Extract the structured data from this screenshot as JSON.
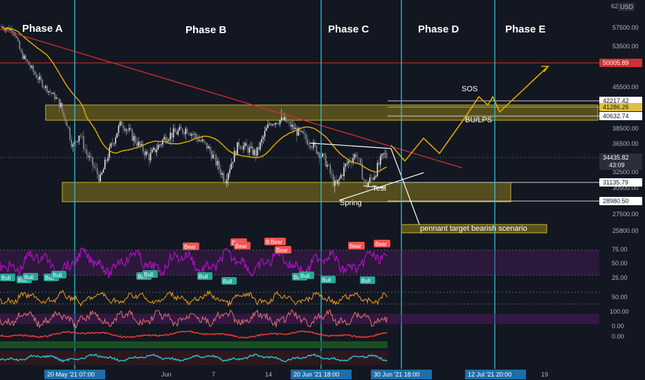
{
  "header": {
    "price_top": "62",
    "currency": "USD"
  },
  "chart_data": {
    "type": "line",
    "title": "",
    "phases": [
      "Phase A",
      "Phase B",
      "Phase C",
      "Phase D",
      "Phase E"
    ],
    "annotations": {
      "sos": "SOS",
      "bu_lps": "BU/LPS",
      "test": "Test",
      "spring": "Spring",
      "pennant": "pennant target bearish scenario"
    },
    "y_axis": {
      "ticks": [
        57500.0,
        53500.0,
        45500.0,
        38500.0,
        36500.0,
        32500.0,
        30500.0,
        27500.0,
        25800.0
      ],
      "tick_labels": [
        "57500.00",
        "53500.00",
        "45500.00",
        "38500.00",
        "36500.00",
        "32500.00",
        "30500.00",
        "27500.00",
        "25800.00"
      ]
    },
    "price_levels": [
      {
        "value": 50005.89,
        "label": "50005.89",
        "kind": "red"
      },
      {
        "value": 42217.42,
        "label": "42217.42",
        "kind": "white"
      },
      {
        "value": 41286.26,
        "label": "41286.26",
        "kind": "yellow"
      },
      {
        "value": 40632.74,
        "label": "40632.74",
        "kind": "white"
      },
      {
        "value": 34435.82,
        "label": "34435.82",
        "kind": "current"
      },
      {
        "value": 31135.79,
        "label": "31135.79",
        "kind": "white"
      },
      {
        "value": 28980.5,
        "label": "28980.50",
        "kind": "white"
      }
    ],
    "countdown": "43:09",
    "x_axis": {
      "tick_labels": [
        "Jun",
        "7",
        "14",
        "19"
      ],
      "highlighted": [
        "20 May '21  07:00",
        "20 Jun '21  18:00",
        "30 Jun '21  18:00",
        "12 Jul '21  20:00"
      ]
    },
    "indicator_1": {
      "tick_labels": [
        "75.00",
        "50.00",
        "25.00"
      ],
      "bear_tags": [
        "Bear",
        "Bear",
        "Bear",
        "Bear",
        "Bear",
        "Bear",
        "Bear",
        "Bear"
      ],
      "bull_tags": [
        "Bull",
        "Bull",
        "Bull",
        "Bull",
        "Bull",
        "Bull",
        "Bull",
        "Bull",
        "Bull",
        "Bull",
        "Bull",
        "Bull",
        "Bull"
      ]
    },
    "indicator_2": {
      "tick_labels": [
        "50.00"
      ]
    },
    "indicator_3": {
      "tick_labels": [
        "100.00",
        "0.00"
      ]
    },
    "indicator_4": {
      "tick_labels": [
        "0.00"
      ]
    },
    "colors": {
      "background": "#131722",
      "candles_up": "#e8e8e8",
      "ma": "#e0a800",
      "trendline": "#d32f2f",
      "zone": "#8a7a1a",
      "phase_line": "#26c6da",
      "projection": "#e0a800",
      "rsi": "#b010c0",
      "bear_tag": "#ef5350",
      "bull_tag": "#26a69a"
    }
  }
}
